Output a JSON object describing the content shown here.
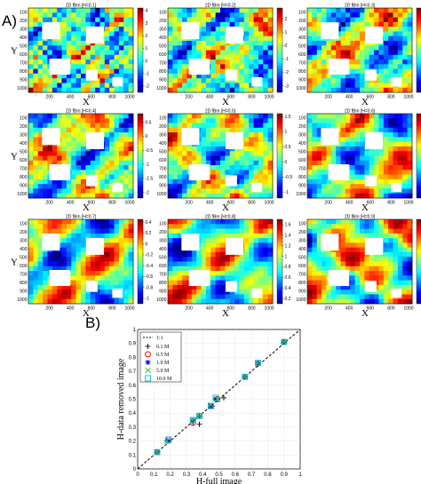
{
  "panel_labels": {
    "a": "A)",
    "b": "B)"
  },
  "heatmap_grid": {
    "x_axis_label": "X",
    "y_axis_label": "Y",
    "x_ticks": [
      "200",
      "400",
      "600",
      "800",
      "1000"
    ],
    "y_ticks": [
      "100",
      "200",
      "300",
      "400",
      "500",
      "600",
      "700",
      "800",
      "900",
      "1000"
    ]
  },
  "chart_data": [
    {
      "type": "heatmap",
      "title": "2D fBm [H=0.1]",
      "colorbar_ticks": [
        "4",
        "3",
        "2",
        "1",
        "0",
        "-1",
        "-2"
      ],
      "clim": [
        -2.5,
        4.2
      ]
    },
    {
      "type": "heatmap",
      "title": "2D fBm [H=0.2]",
      "colorbar_ticks": [
        "2",
        "1",
        "0",
        "-1",
        "-2",
        "-3"
      ],
      "clim": [
        -3.5,
        2.8
      ]
    },
    {
      "type": "heatmap",
      "title": "2D fBm [H=0.3]",
      "colorbar_ticks": [
        "1.5",
        "1",
        "0.5",
        "0",
        "-0.5",
        "-1",
        "-1.5"
      ],
      "clim": [
        -1.8,
        1.9
      ]
    },
    {
      "type": "heatmap",
      "title": "2D fBm [H=0.4]",
      "colorbar_ticks": [
        "0.5",
        "0",
        "-0.5",
        "-1",
        "-1.5",
        "-2"
      ],
      "clim": [
        -2.2,
        0.8
      ]
    },
    {
      "type": "heatmap",
      "title": "2D fBm [H=0.5]",
      "colorbar_ticks": [
        "1.5",
        "1",
        "0.5",
        "0",
        "-0.5",
        "-1"
      ],
      "clim": [
        -1.2,
        1.6
      ]
    },
    {
      "type": "heatmap",
      "title": "2D fBm [H=0.6]",
      "colorbar_ticks": [
        "1.4",
        "1.2",
        "1",
        "0.8",
        "0.6",
        "0.4",
        "0.2",
        "0",
        "-0.2"
      ],
      "clim": [
        -0.3,
        1.5
      ]
    },
    {
      "type": "heatmap",
      "title": "2D fBm [H=0.7]",
      "colorbar_ticks": [
        "0.4",
        "0.2",
        "0",
        "-0.2",
        "-0.4",
        "-0.6",
        "-0.8",
        "-1"
      ],
      "clim": [
        -1.1,
        0.45
      ]
    },
    {
      "type": "heatmap",
      "title": "2D fBm [H=0.8]",
      "colorbar_ticks": [
        "1.6",
        "1.4",
        "1.2",
        "1",
        "0.8",
        "0.6",
        "0.4",
        "0.2"
      ],
      "clim": [
        0.1,
        1.7
      ]
    },
    {
      "type": "heatmap",
      "title": "2D fBm [H=0.9]",
      "colorbar_ticks": [
        "1.2",
        "1",
        "0.8",
        "0.6",
        "0.4",
        "0.2",
        "0",
        "-0.2",
        "-0.4",
        "-0.6"
      ],
      "clim": [
        -0.7,
        1.3
      ]
    },
    {
      "type": "scatter",
      "title": "",
      "xlabel": "H-full image",
      "ylabel": "H-data removed image",
      "xlim": [
        0,
        1
      ],
      "ylim": [
        0,
        1
      ],
      "x_ticks": [
        "0",
        "0.1",
        "0.2",
        "0.3",
        "0.4",
        "0.5",
        "0.6",
        "0.7",
        "0.8",
        "0.9",
        "1"
      ],
      "y_ticks": [
        "0",
        "0.1",
        "0.2",
        "0.3",
        "0.4",
        "0.5",
        "0.6",
        "0.7",
        "0.8",
        "0.9",
        "1"
      ],
      "grid": true,
      "legend_position": "top-left",
      "reference_line": {
        "name": "1:1",
        "x": [
          0,
          1
        ],
        "y": [
          0,
          1
        ]
      },
      "series": [
        {
          "name": "0.1 M",
          "marker": "plus",
          "color": "#000000",
          "x": [
            0.12,
            0.18,
            0.34,
            0.38,
            0.46,
            0.53,
            0.66,
            0.74,
            0.9
          ],
          "y": [
            0.12,
            0.2,
            0.33,
            0.32,
            0.45,
            0.51,
            0.66,
            0.75,
            0.91
          ]
        },
        {
          "name": "0.5 M",
          "marker": "circle",
          "color": "#ff0000",
          "x": [
            0.12,
            0.19,
            0.34,
            0.38,
            0.45,
            0.49,
            0.66,
            0.74,
            0.9
          ],
          "y": [
            0.12,
            0.21,
            0.33,
            0.38,
            0.45,
            0.5,
            0.66,
            0.76,
            0.91
          ]
        },
        {
          "name": "1.0 M",
          "marker": "asterisk",
          "color": "#0000ff",
          "x": [
            0.12,
            0.19,
            0.34,
            0.38,
            0.45,
            0.48,
            0.66,
            0.74,
            0.9
          ],
          "y": [
            0.12,
            0.2,
            0.35,
            0.38,
            0.45,
            0.5,
            0.66,
            0.76,
            0.91
          ]
        },
        {
          "name": "5.0 M",
          "marker": "x",
          "color": "#33cc33",
          "x": [
            0.12,
            0.18,
            0.34,
            0.38,
            0.45,
            0.49,
            0.66,
            0.74,
            0.9
          ],
          "y": [
            0.12,
            0.2,
            0.35,
            0.38,
            0.46,
            0.5,
            0.66,
            0.76,
            0.91
          ]
        },
        {
          "name": "10.0 M",
          "marker": "square",
          "color": "#00cccc",
          "x": [
            0.12,
            0.19,
            0.34,
            0.38,
            0.45,
            0.48,
            0.66,
            0.74,
            0.9
          ],
          "y": [
            0.12,
            0.21,
            0.35,
            0.38,
            0.45,
            0.51,
            0.66,
            0.76,
            0.91
          ]
        }
      ]
    }
  ]
}
